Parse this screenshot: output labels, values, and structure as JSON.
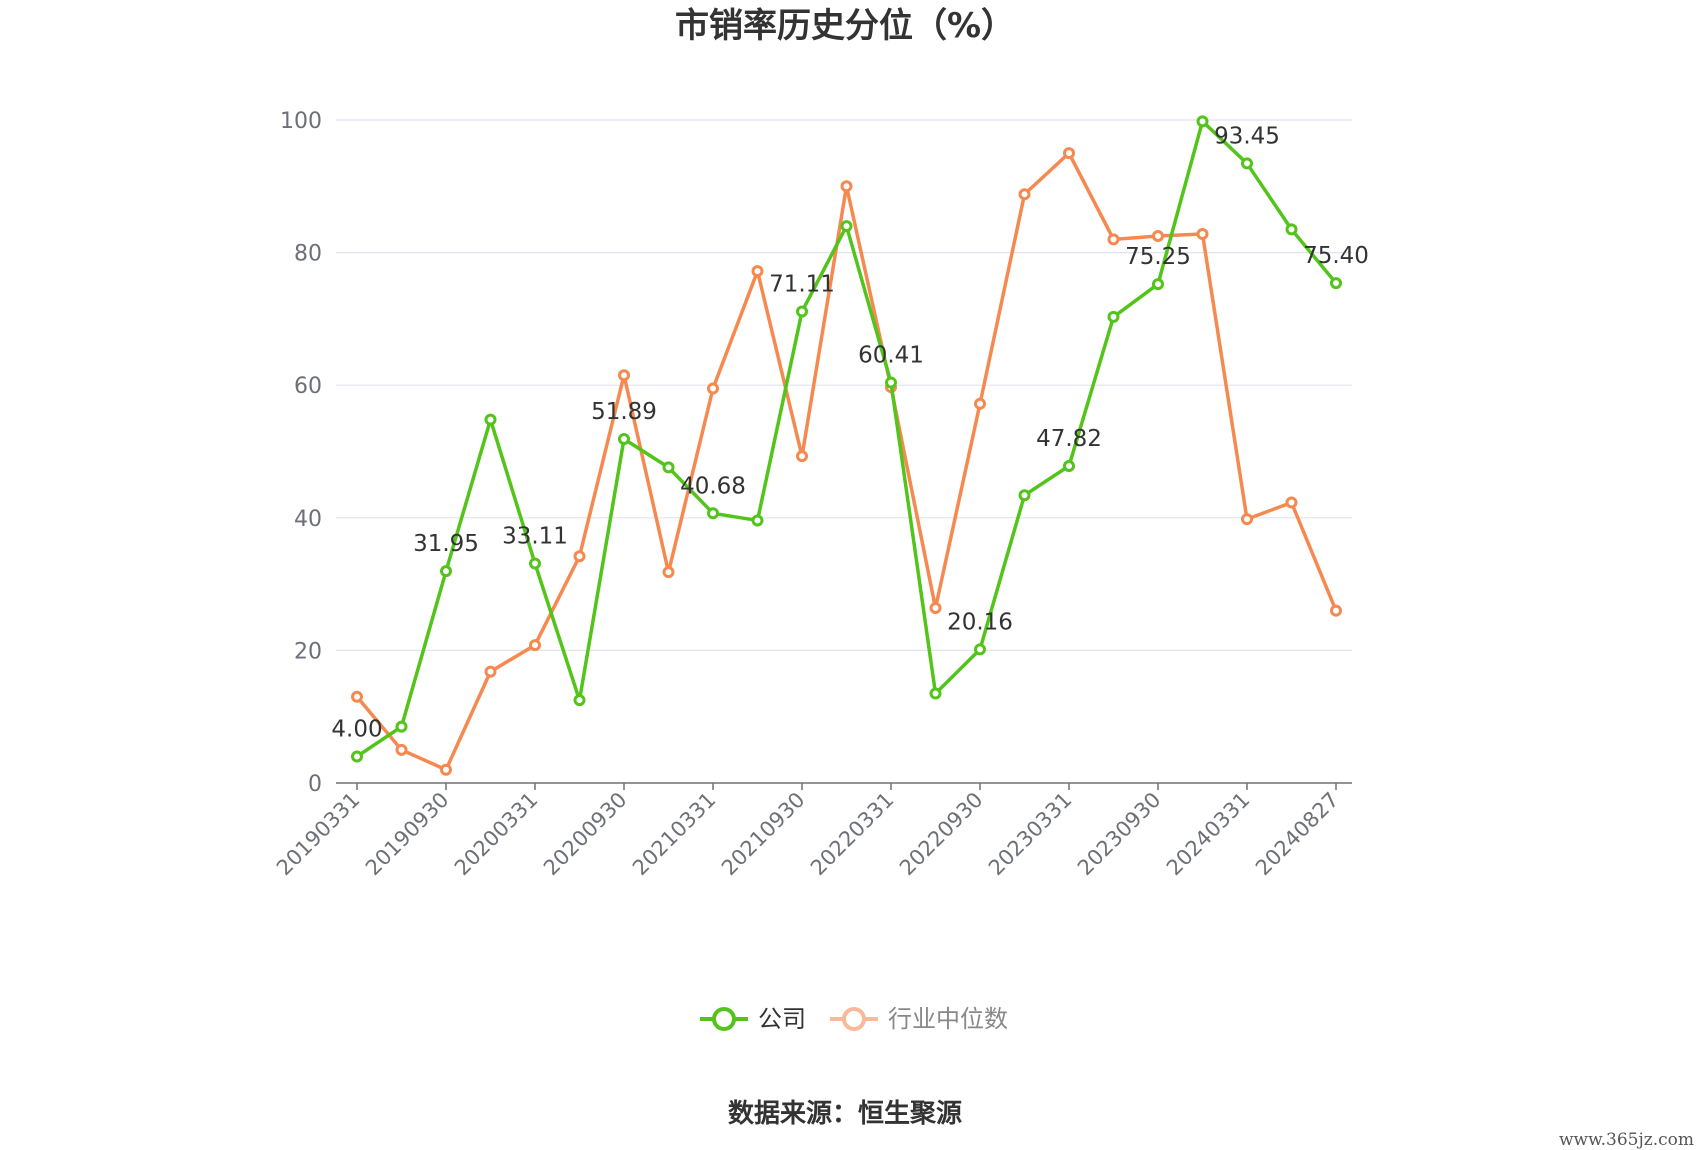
{
  "chart_data": {
    "type": "line",
    "title": "市销率历史分位（%）",
    "ylim": [
      0,
      100
    ],
    "yticks": [
      0,
      20,
      40,
      60,
      80,
      100
    ],
    "x": [
      "20190331",
      "20190630",
      "20190930",
      "20191231",
      "20200331",
      "20200630",
      "20200930",
      "20201231",
      "20210331",
      "20210630",
      "20210930",
      "20211231",
      "20220331",
      "20220630",
      "20220930",
      "20221231",
      "20230331",
      "20230630",
      "20230930",
      "20231231",
      "20240331",
      "20240630",
      "20240827"
    ],
    "xtick_labels": [
      "20190331",
      "20190930",
      "20200331",
      "20200930",
      "20210331",
      "20210930",
      "20220331",
      "20220930",
      "20230331",
      "20230930",
      "20240331",
      "20240827"
    ],
    "grid": true,
    "legend_position": "bottom",
    "series": [
      {
        "name": "公司",
        "color": "#52c41a",
        "values": [
          4.0,
          8.5,
          31.95,
          54.8,
          33.11,
          12.5,
          51.89,
          47.6,
          40.68,
          39.6,
          71.11,
          84.0,
          60.41,
          13.5,
          20.16,
          43.4,
          47.82,
          70.3,
          75.25,
          99.8,
          93.45,
          83.5,
          75.4
        ],
        "labels": {
          "0": "4.00",
          "2": "31.95",
          "4": "33.11",
          "6": "51.89",
          "8": "40.68",
          "10": "71.11",
          "12": "60.41",
          "14": "20.16",
          "16": "47.82",
          "18": "75.25",
          "20": "93.45",
          "22": "75.40"
        }
      },
      {
        "name": "行业中位数",
        "color": "#f5894f",
        "values": [
          13.0,
          5.0,
          2.0,
          16.8,
          20.8,
          34.2,
          61.5,
          31.8,
          59.5,
          77.2,
          49.3,
          90.0,
          59.7,
          26.4,
          57.2,
          88.8,
          95.0,
          82.0,
          82.5,
          82.8,
          39.8,
          42.3,
          26.0
        ]
      }
    ]
  },
  "source": "数据来源：恒生聚源",
  "watermark": "www.365jz.com"
}
